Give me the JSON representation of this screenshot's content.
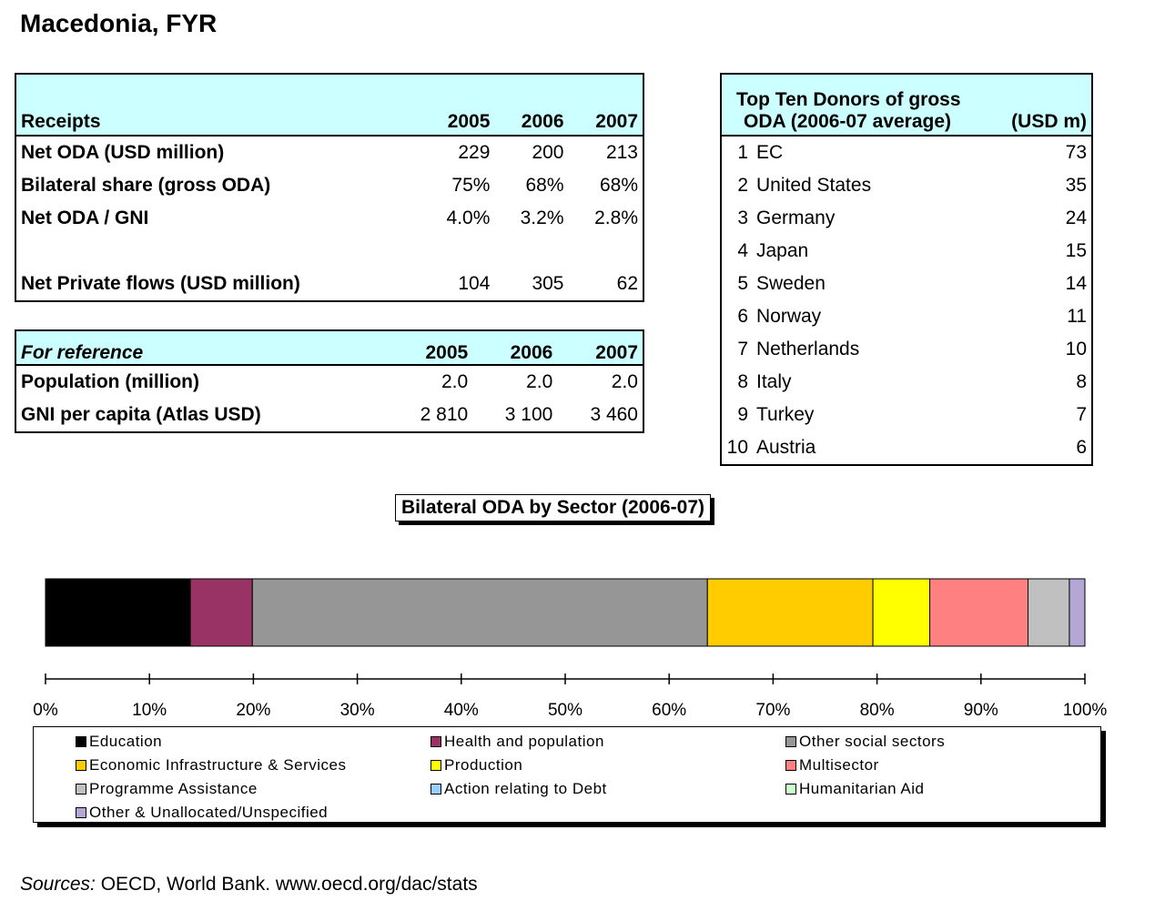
{
  "page": {
    "title": "Macedonia, FYR",
    "sources_label": "Sources:",
    "sources_text": " OECD, World Bank. www.oecd.org/dac/stats"
  },
  "receipts": {
    "header": [
      "Receipts",
      "2005",
      "2006",
      "2007"
    ],
    "rows": [
      {
        "label": "Net ODA (USD million)",
        "values": [
          "229",
          "200",
          "213"
        ]
      },
      {
        "label": "Bilateral share (gross ODA)",
        "values": [
          "75%",
          "68%",
          "68%"
        ]
      },
      {
        "label": "Net ODA / GNI",
        "values": [
          "4.0%",
          "3.2%",
          "2.8%"
        ]
      },
      {
        "label": "",
        "values": [
          "",
          "",
          ""
        ]
      },
      {
        "label": "Net Private flows (USD million)",
        "values": [
          "104",
          "305",
          "62"
        ]
      }
    ]
  },
  "reference": {
    "header": [
      "For reference",
      "2005",
      "2006",
      "2007"
    ],
    "rows": [
      {
        "label": "Population (million)",
        "values": [
          "2.0",
          "2.0",
          "2.0"
        ]
      },
      {
        "label": "GNI per capita (Atlas USD)",
        "values": [
          "2 810",
          "3 100",
          "3 460"
        ]
      }
    ]
  },
  "donors": {
    "header_line1": "Top Ten Donors of gross",
    "header_line2": "ODA (2006-07 average)",
    "header_unit": "(USD m)",
    "rows": [
      {
        "rank": "1",
        "name": "EC",
        "value": "73"
      },
      {
        "rank": "2",
        "name": "United States",
        "value": "35"
      },
      {
        "rank": "3",
        "name": "Germany",
        "value": "24"
      },
      {
        "rank": "4",
        "name": "Japan",
        "value": "15"
      },
      {
        "rank": "5",
        "name": "Sweden",
        "value": "14"
      },
      {
        "rank": "6",
        "name": "Norway",
        "value": "11"
      },
      {
        "rank": "7",
        "name": "Netherlands",
        "value": "10"
      },
      {
        "rank": "8",
        "name": "Italy",
        "value": "8"
      },
      {
        "rank": "9",
        "name": "Turkey",
        "value": "7"
      },
      {
        "rank": "10",
        "name": "Austria",
        "value": "6"
      }
    ]
  },
  "chart_data": {
    "type": "bar",
    "orientation": "horizontal-stacked-100",
    "title": "Bilateral ODA by Sector (2006-07)",
    "xlim": [
      0,
      100
    ],
    "ticks": [
      "0%",
      "10%",
      "20%",
      "30%",
      "40%",
      "50%",
      "60%",
      "70%",
      "80%",
      "90%",
      "100%"
    ],
    "series": [
      {
        "name": "Education",
        "value": 14,
        "color": "#000000"
      },
      {
        "name": "Health and population",
        "value": 6,
        "color": "#993366"
      },
      {
        "name": "Other social sectors",
        "value": 44,
        "color": "#969696"
      },
      {
        "name": "Economic Infrastructure & Services",
        "value": 16,
        "color": "#ffcc00"
      },
      {
        "name": "Production",
        "value": 5.5,
        "color": "#ffff00"
      },
      {
        "name": "Multisector",
        "value": 9.5,
        "color": "#ff8080"
      },
      {
        "name": "Programme Assistance",
        "value": 4,
        "color": "#c0c0c0"
      },
      {
        "name": "Action relating to Debt",
        "value": 0,
        "color": "#99ccff"
      },
      {
        "name": "Humanitarian Aid",
        "value": 0,
        "color": "#ccffcc"
      },
      {
        "name": "Other & Unallocated/Unspecified",
        "value": 1.5,
        "color": "#b4a7d6"
      }
    ],
    "legend_position": "bottom",
    "grid": false
  }
}
